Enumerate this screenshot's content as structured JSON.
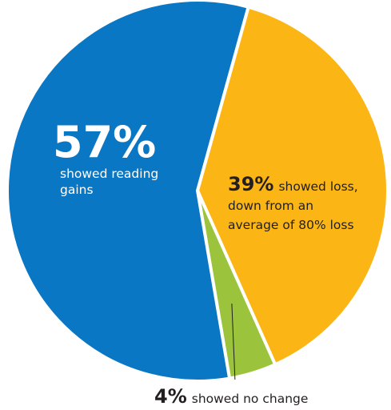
{
  "chart_data": {
    "type": "pie",
    "slices": [
      {
        "label": "showed loss, down from an average of 80% loss",
        "value": 39,
        "pct_label": "39%",
        "desc_lines": [
          "showed loss,",
          "down from an",
          "average of 80% loss"
        ],
        "color": "#FBB615"
      },
      {
        "label": "showed no change",
        "value": 4,
        "pct_label": "4%",
        "desc_lines": [
          "showed no change"
        ],
        "color": "#9BC33C"
      },
      {
        "label": "showed reading gains",
        "value": 57,
        "pct_label": "57%",
        "desc_lines": [
          "showed reading",
          "gains"
        ],
        "color": "#0A77C5"
      }
    ],
    "separator_color": "#ffffff"
  }
}
